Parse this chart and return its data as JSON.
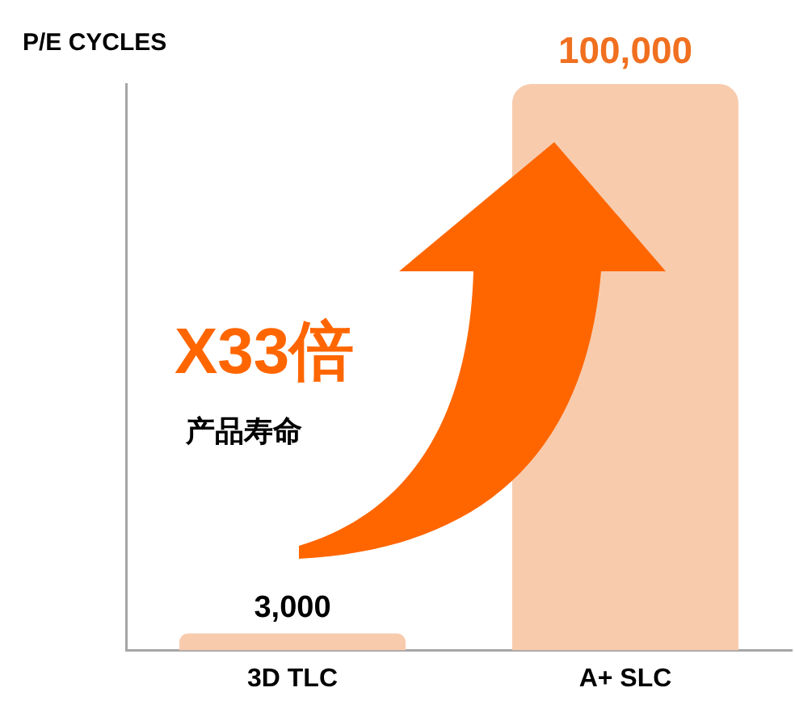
{
  "chart_data": {
    "type": "bar",
    "ylabel": "P/E CYCLES",
    "categories": [
      "3D TLC",
      "A+ SLC"
    ],
    "values": [
      3000,
      100000
    ],
    "colors": [
      "#f8cbad",
      "#f8cbad"
    ],
    "data_labels": true,
    "value_labels": [
      "3,000",
      "100,000"
    ],
    "tick_labels": "x",
    "grid": false,
    "legend": false,
    "annotations": [
      "X33倍",
      "产品寿命"
    ]
  }
}
